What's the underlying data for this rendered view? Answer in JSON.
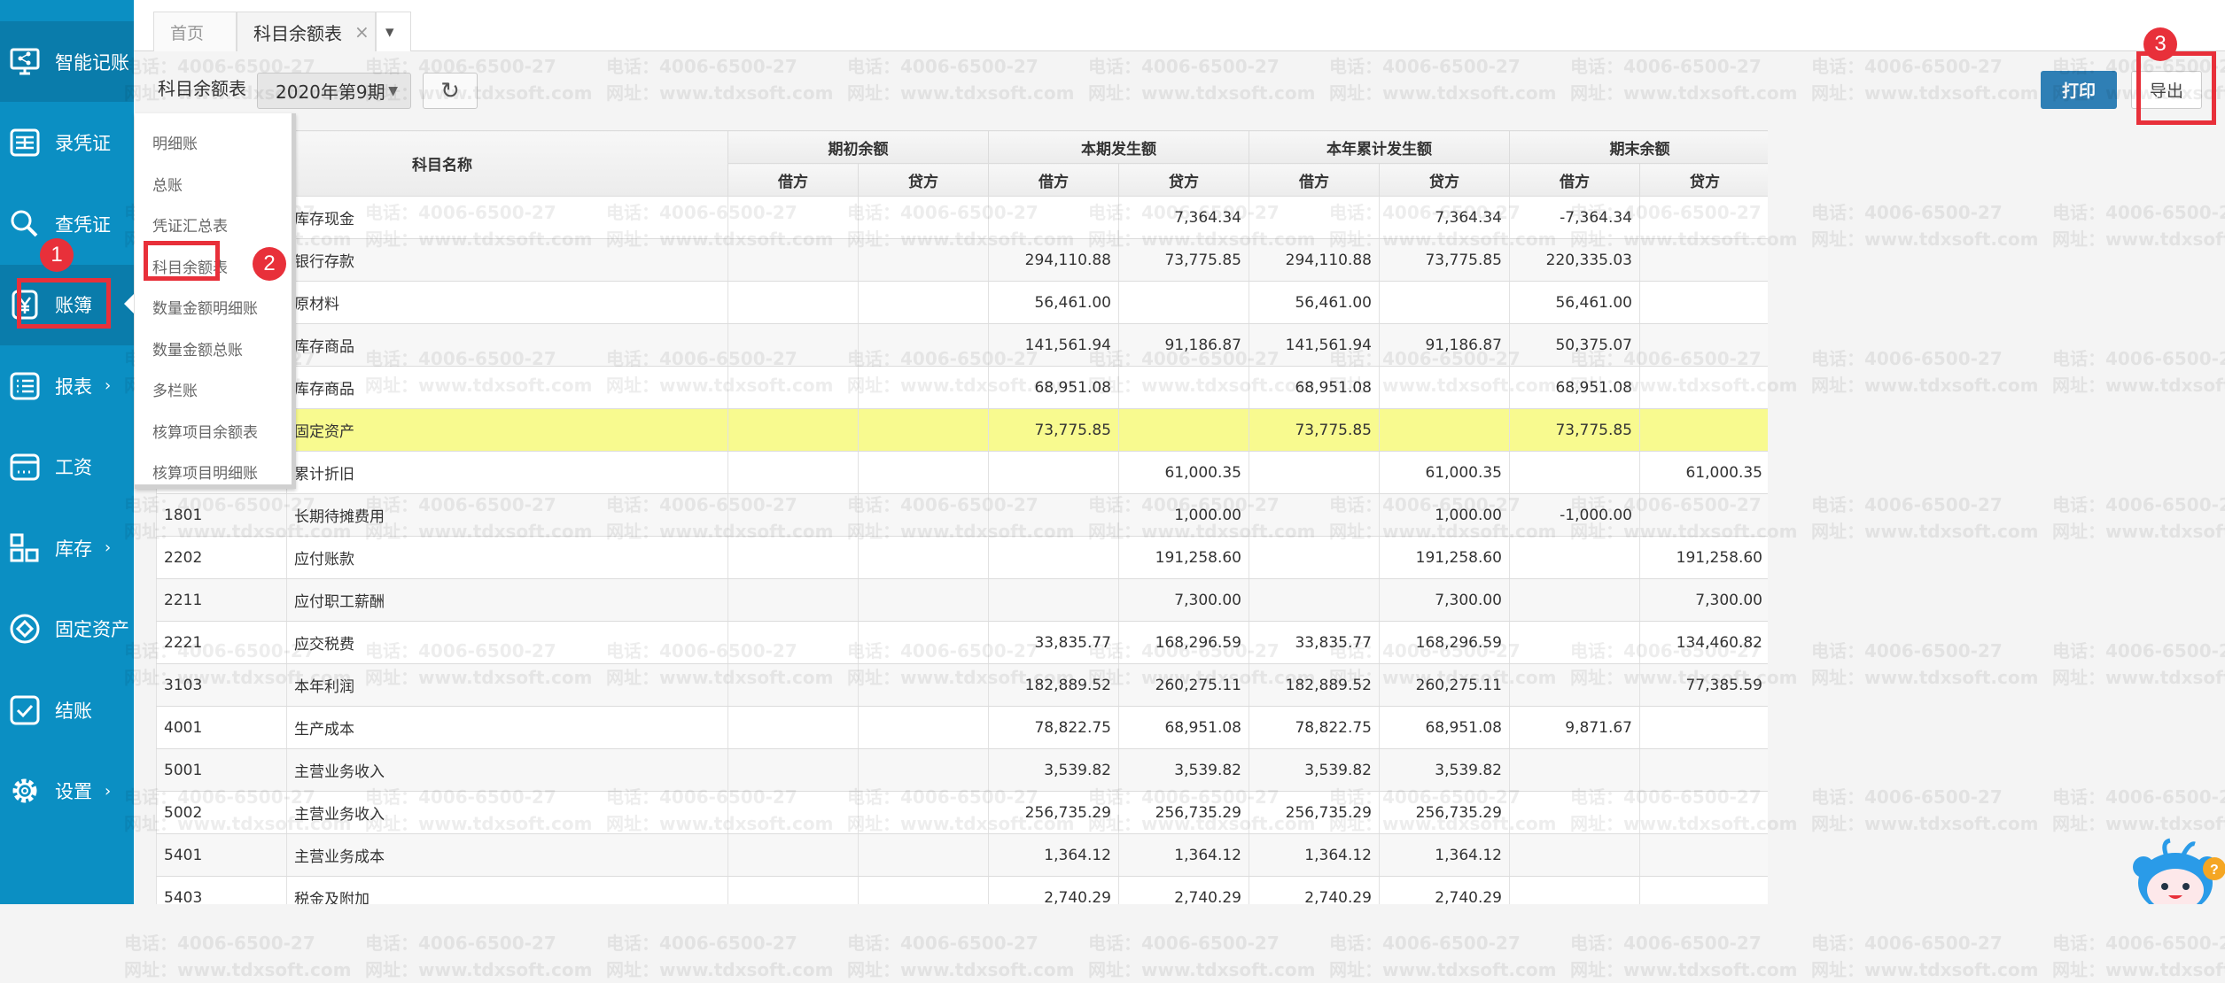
{
  "sidebar": {
    "items": [
      {
        "label": "智能记账",
        "icon": "monitor-share-icon"
      },
      {
        "label": "录凭证",
        "icon": "voucher-entry-icon"
      },
      {
        "label": "查凭证",
        "icon": "search-icon"
      },
      {
        "label": "账簿",
        "icon": "yen-book-icon",
        "active": true
      },
      {
        "label": "报表",
        "icon": "list-icon",
        "arrow": "›"
      },
      {
        "label": "工资",
        "icon": "calendar-icon"
      },
      {
        "label": "库存",
        "icon": "grid-icon",
        "arrow": "›"
      },
      {
        "label": "固定资产",
        "icon": "diamond-circle-icon"
      },
      {
        "label": "结账",
        "icon": "checkbox-icon"
      },
      {
        "label": "设置",
        "icon": "gear-icon",
        "arrow": "›"
      }
    ]
  },
  "tabs": {
    "home": "首页",
    "active": "科目余额表",
    "close": "×",
    "more": "▾"
  },
  "toolbar": {
    "label": "科目余额表",
    "period": "2020年第9期",
    "refresh": "↻",
    "print": "打印",
    "export": "导出"
  },
  "menu": {
    "items": [
      "明细账",
      "总账",
      "凭证汇总表",
      "科目余额表",
      "数量金额明细账",
      "数量金额总账",
      "多栏账",
      "核算项目余额表",
      "核算项目明细账"
    ]
  },
  "annotations": {
    "b1": "1",
    "b2": "2",
    "b3": "3"
  },
  "watermark": {
    "line1": "电话：4006-6500-27",
    "line2": "网址：www.tdxsoft.com"
  },
  "colors": {
    "sidebar": "#0b8fc3",
    "accent": "#2f7fb5",
    "highlight": "#f8fa8f",
    "annotation": "#e8303a"
  },
  "table": {
    "headers": {
      "name": "科目名称",
      "opening": "期初余额",
      "period": "本期发生额",
      "ytd": "本年累计发生额",
      "closing": "期末余额",
      "debit": "借方",
      "credit": "贷方"
    },
    "rows": [
      [
        "",
        "库存现金",
        "",
        "",
        "",
        "7,364.34",
        "",
        "7,364.34",
        "-7,364.34",
        ""
      ],
      [
        "",
        "银行存款",
        "",
        "",
        "294,110.88",
        "73,775.85",
        "294,110.88",
        "73,775.85",
        "220,335.03",
        ""
      ],
      [
        "",
        "原材料",
        "",
        "",
        "56,461.00",
        "",
        "56,461.00",
        "",
        "56,461.00",
        ""
      ],
      [
        "",
        "库存商品",
        "",
        "",
        "141,561.94",
        "91,186.87",
        "141,561.94",
        "91,186.87",
        "50,375.07",
        ""
      ],
      [
        "",
        "库存商品",
        "",
        "",
        "68,951.08",
        "",
        "68,951.08",
        "",
        "68,951.08",
        ""
      ],
      [
        "",
        "固定资产",
        "",
        "",
        "73,775.85",
        "",
        "73,775.85",
        "",
        "73,775.85",
        ""
      ],
      [
        "",
        "累计折旧",
        "",
        "",
        "",
        "61,000.35",
        "",
        "61,000.35",
        "",
        "61,000.35"
      ],
      [
        "1801",
        "长期待摊费用",
        "",
        "",
        "",
        "1,000.00",
        "",
        "1,000.00",
        "-1,000.00",
        ""
      ],
      [
        "2202",
        "应付账款",
        "",
        "",
        "",
        "191,258.60",
        "",
        "191,258.60",
        "",
        "191,258.60"
      ],
      [
        "2211",
        "应付职工薪酬",
        "",
        "",
        "",
        "7,300.00",
        "",
        "7,300.00",
        "",
        "7,300.00"
      ],
      [
        "2221",
        "应交税费",
        "",
        "",
        "33,835.77",
        "168,296.59",
        "33,835.77",
        "168,296.59",
        "",
        "134,460.82"
      ],
      [
        "3103",
        "本年利润",
        "",
        "",
        "182,889.52",
        "260,275.11",
        "182,889.52",
        "260,275.11",
        "",
        "77,385.59"
      ],
      [
        "4001",
        "生产成本",
        "",
        "",
        "78,822.75",
        "68,951.08",
        "78,822.75",
        "68,951.08",
        "9,871.67",
        ""
      ],
      [
        "5001",
        "主营业务收入",
        "",
        "",
        "3,539.82",
        "3,539.82",
        "3,539.82",
        "3,539.82",
        "",
        ""
      ],
      [
        "5002",
        "主营业务收入",
        "",
        "",
        "256,735.29",
        "256,735.29",
        "256,735.29",
        "256,735.29",
        "",
        ""
      ],
      [
        "5401",
        "主营业务成本",
        "",
        "",
        "1,364.12",
        "1,364.12",
        "1,364.12",
        "1,364.12",
        "",
        ""
      ],
      [
        "5403",
        "税金及附加",
        "",
        "",
        "2,740.29",
        "2,740.29",
        "2,740.29",
        "2,740.29",
        "",
        ""
      ]
    ],
    "highlight_row": 5
  }
}
